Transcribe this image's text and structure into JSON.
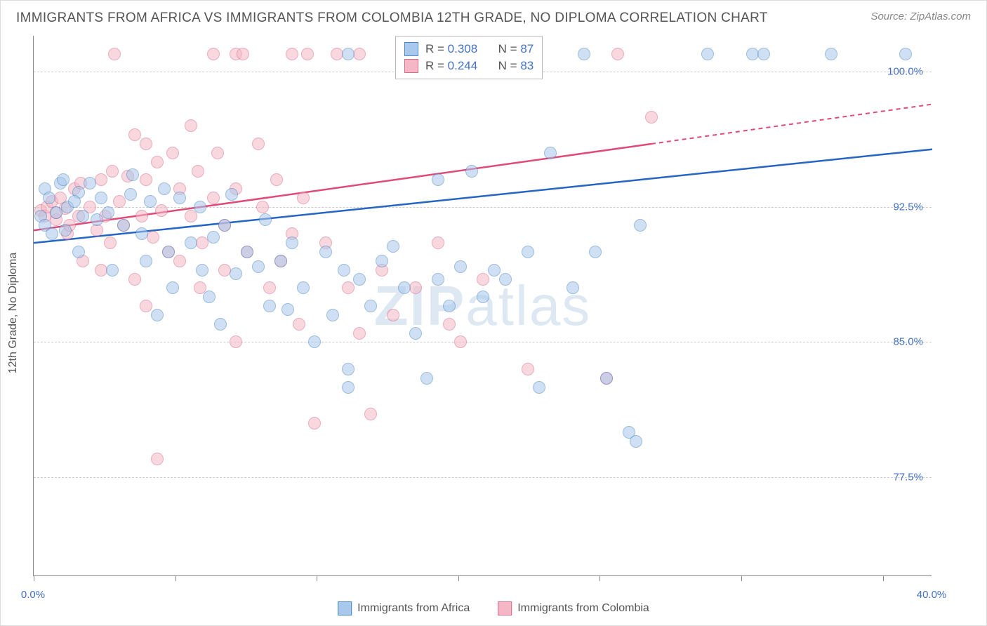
{
  "title": "IMMIGRANTS FROM AFRICA VS IMMIGRANTS FROM COLOMBIA 12TH GRADE, NO DIPLOMA CORRELATION CHART",
  "source": "Source: ZipAtlas.com",
  "ylabel": "12th Grade, No Diploma",
  "watermark_prefix": "ZIP",
  "watermark_suffix": "atlas",
  "chart": {
    "type": "scatter",
    "xlim": [
      0,
      40
    ],
    "ylim": [
      72,
      102
    ],
    "yticks": [
      77.5,
      85.0,
      92.5,
      100.0
    ],
    "ytick_labels": [
      "77.5%",
      "85.0%",
      "92.5%",
      "100.0%"
    ],
    "xlabel_min": "0.0%",
    "xlabel_max": "40.0%",
    "xtick_positions": [
      0,
      6.3,
      12.6,
      18.9,
      25.2,
      31.5,
      37.8
    ],
    "plot_bg": "#ffffff",
    "grid_color": "#cccccc",
    "axis_color": "#888888",
    "label_color": "#4472c4",
    "label_fontsize": 15,
    "title_color": "#555555",
    "title_fontsize": 19,
    "point_radius": 9,
    "point_opacity": 0.55
  },
  "series": [
    {
      "name": "Immigrants from Africa",
      "fill": "#a8c8ec",
      "stroke": "#4a86c5",
      "line_color": "#2566c4",
      "R": "0.308",
      "N": "87",
      "trend": {
        "x1": 0,
        "y1": 90.5,
        "x2": 40,
        "y2": 95.7,
        "dashed_from": 40
      },
      "points": [
        [
          0.3,
          92.0
        ],
        [
          0.5,
          91.5
        ],
        [
          0.5,
          93.5
        ],
        [
          0.7,
          93.0
        ],
        [
          1.0,
          92.2
        ],
        [
          1.2,
          93.8
        ],
        [
          0.8,
          91.0
        ],
        [
          1.5,
          92.5
        ],
        [
          1.4,
          91.2
        ],
        [
          2.0,
          93.3
        ],
        [
          1.3,
          94.0
        ],
        [
          2.2,
          92.0
        ],
        [
          2.5,
          93.8
        ],
        [
          2.8,
          91.8
        ],
        [
          1.8,
          92.8
        ],
        [
          3.0,
          93.0
        ],
        [
          2.0,
          90.0
        ],
        [
          3.3,
          92.2
        ],
        [
          3.5,
          89.0
        ],
        [
          4.0,
          91.5
        ],
        [
          4.3,
          93.2
        ],
        [
          4.4,
          94.3
        ],
        [
          4.8,
          91.0
        ],
        [
          5.0,
          89.5
        ],
        [
          5.2,
          92.8
        ],
        [
          5.5,
          86.5
        ],
        [
          5.8,
          93.5
        ],
        [
          6.0,
          90.0
        ],
        [
          6.2,
          88.0
        ],
        [
          6.5,
          93.0
        ],
        [
          7.0,
          90.5
        ],
        [
          7.4,
          92.5
        ],
        [
          7.5,
          89.0
        ],
        [
          7.8,
          87.5
        ],
        [
          8.0,
          90.8
        ],
        [
          8.3,
          86.0
        ],
        [
          8.5,
          91.5
        ],
        [
          8.8,
          93.2
        ],
        [
          9.0,
          88.8
        ],
        [
          9.5,
          90.0
        ],
        [
          10.0,
          89.2
        ],
        [
          10.3,
          91.8
        ],
        [
          10.5,
          87.0
        ],
        [
          11.0,
          89.5
        ],
        [
          11.3,
          86.8
        ],
        [
          11.5,
          90.5
        ],
        [
          12.0,
          88.0
        ],
        [
          12.5,
          85.0
        ],
        [
          13.0,
          90.0
        ],
        [
          13.3,
          86.5
        ],
        [
          13.8,
          89.0
        ],
        [
          14.0,
          83.5
        ],
        [
          14.0,
          82.5
        ],
        [
          14.5,
          88.5
        ],
        [
          15.0,
          87.0
        ],
        [
          15.5,
          89.5
        ],
        [
          16.0,
          90.3
        ],
        [
          16.5,
          88.0
        ],
        [
          17.0,
          85.5
        ],
        [
          17.5,
          83.0
        ],
        [
          18.0,
          94.0
        ],
        [
          18.0,
          88.5
        ],
        [
          18.5,
          87.0
        ],
        [
          19.0,
          89.2
        ],
        [
          19.0,
          101.0
        ],
        [
          19.5,
          94.5
        ],
        [
          20.0,
          87.5
        ],
        [
          20.5,
          89.0
        ],
        [
          21.0,
          88.5
        ],
        [
          21.2,
          101.0
        ],
        [
          22.0,
          90.0
        ],
        [
          22.5,
          82.5
        ],
        [
          23.0,
          95.5
        ],
        [
          24.0,
          88.0
        ],
        [
          24.5,
          101.0
        ],
        [
          25.0,
          90.0
        ],
        [
          25.5,
          83.0
        ],
        [
          26.5,
          80.0
        ],
        [
          26.8,
          79.5
        ],
        [
          27.0,
          91.5
        ],
        [
          30.0,
          101.0
        ],
        [
          32.0,
          101.0
        ],
        [
          32.5,
          101.0
        ],
        [
          35.5,
          101.0
        ],
        [
          38.8,
          101.0
        ],
        [
          14.0,
          101.0
        ],
        [
          17.0,
          101.0
        ]
      ]
    },
    {
      "name": "Immigrants from Colombia",
      "fill": "#f5b7c5",
      "stroke": "#d86a8a",
      "line_color": "#e04a77",
      "R": "0.244",
      "N": "83",
      "trend": {
        "x1": 0,
        "y1": 91.2,
        "x2": 27.5,
        "y2": 96.0,
        "dashed_from": 27.5,
        "x3": 40,
        "y3": 98.2
      },
      "points": [
        [
          0.3,
          92.3
        ],
        [
          0.5,
          92.0
        ],
        [
          0.6,
          92.5
        ],
        [
          0.8,
          92.8
        ],
        [
          1.0,
          91.8
        ],
        [
          1.2,
          93.0
        ],
        [
          1.0,
          92.2
        ],
        [
          1.5,
          91.0
        ],
        [
          1.4,
          92.4
        ],
        [
          1.8,
          93.5
        ],
        [
          1.6,
          91.5
        ],
        [
          2.0,
          92.0
        ],
        [
          2.1,
          93.8
        ],
        [
          2.5,
          92.5
        ],
        [
          2.2,
          89.5
        ],
        [
          2.8,
          91.2
        ],
        [
          3.0,
          94.0
        ],
        [
          3.2,
          92.0
        ],
        [
          3.5,
          94.5
        ],
        [
          3.0,
          89.0
        ],
        [
          3.4,
          90.5
        ],
        [
          3.8,
          92.8
        ],
        [
          4.0,
          91.5
        ],
        [
          4.2,
          94.2
        ],
        [
          4.5,
          96.5
        ],
        [
          4.5,
          88.5
        ],
        [
          4.8,
          92.0
        ],
        [
          5.0,
          94.0
        ],
        [
          5.0,
          87.0
        ],
        [
          5.3,
          90.8
        ],
        [
          5.5,
          95.0
        ],
        [
          5.7,
          92.3
        ],
        [
          5.0,
          96.0
        ],
        [
          6.0,
          90.0
        ],
        [
          6.2,
          95.5
        ],
        [
          6.5,
          89.5
        ],
        [
          6.5,
          93.5
        ],
        [
          7.0,
          92.0
        ],
        [
          7.3,
          94.5
        ],
        [
          7.5,
          90.5
        ],
        [
          7.4,
          88.0
        ],
        [
          8.0,
          93.0
        ],
        [
          8.2,
          95.5
        ],
        [
          8.5,
          89.0
        ],
        [
          8.5,
          91.5
        ],
        [
          9.0,
          93.5
        ],
        [
          9.0,
          85.0
        ],
        [
          9.5,
          90.0
        ],
        [
          10.0,
          96.0
        ],
        [
          10.2,
          92.5
        ],
        [
          10.5,
          88.0
        ],
        [
          10.8,
          94.0
        ],
        [
          11.0,
          89.5
        ],
        [
          11.5,
          91.0
        ],
        [
          11.5,
          101.0
        ],
        [
          11.8,
          86.0
        ],
        [
          12.0,
          93.0
        ],
        [
          12.5,
          80.5
        ],
        [
          13.0,
          90.5
        ],
        [
          13.5,
          101.0
        ],
        [
          14.0,
          88.0
        ],
        [
          14.5,
          85.5
        ],
        [
          15.0,
          81.0
        ],
        [
          5.5,
          78.5
        ],
        [
          15.5,
          89.0
        ],
        [
          16.0,
          86.5
        ],
        [
          17.0,
          88.0
        ],
        [
          12.2,
          101.0
        ],
        [
          14.5,
          101.0
        ],
        [
          18.0,
          90.5
        ],
        [
          19.0,
          85.0
        ],
        [
          3.6,
          101.0
        ],
        [
          20.0,
          88.5
        ],
        [
          21.0,
          101.0
        ],
        [
          22.0,
          83.5
        ],
        [
          25.5,
          83.0
        ],
        [
          26.0,
          101.0
        ],
        [
          27.5,
          97.5
        ],
        [
          9.0,
          101.0
        ],
        [
          9.3,
          101.0
        ],
        [
          7.0,
          97.0
        ],
        [
          8.0,
          101.0
        ],
        [
          18.5,
          86.0
        ]
      ]
    }
  ],
  "legend_stats": {
    "r_prefix": "R = ",
    "n_prefix": "N = "
  },
  "bottom_legend": [
    {
      "label": "Immigrants from Africa",
      "fill": "#a8c8ec",
      "stroke": "#4a86c5"
    },
    {
      "label": "Immigrants from Colombia",
      "fill": "#f5b7c5",
      "stroke": "#d86a8a"
    }
  ]
}
